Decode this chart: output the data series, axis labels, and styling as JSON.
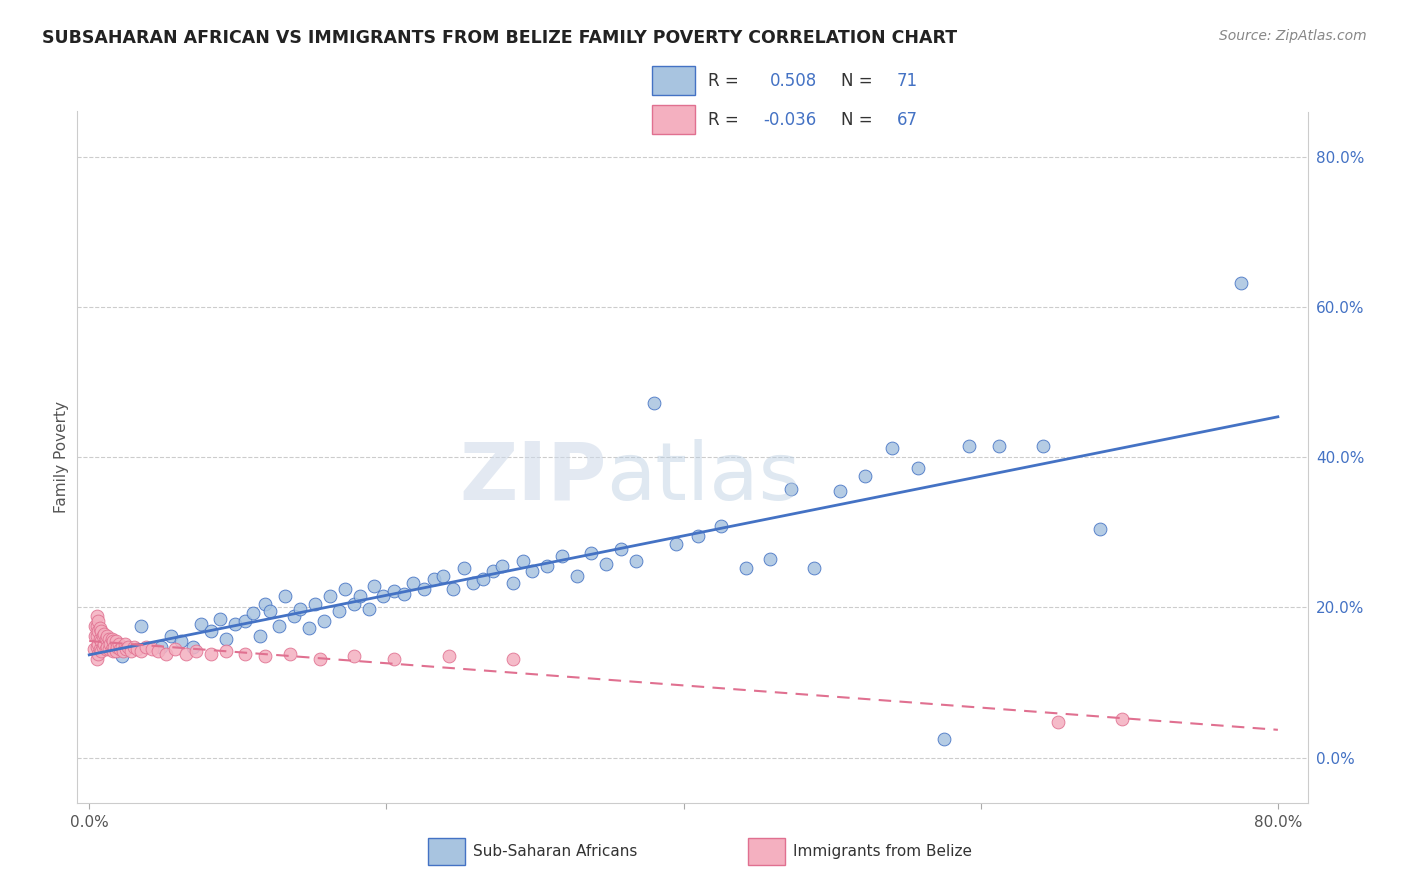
{
  "title": "SUBSAHARAN AFRICAN VS IMMIGRANTS FROM BELIZE FAMILY POVERTY CORRELATION CHART",
  "source": "Source: ZipAtlas.com",
  "ylabel": "Family Poverty",
  "color_blue": "#a8c4e0",
  "line_blue": "#4472c4",
  "color_pink": "#f4b0c0",
  "line_pink": "#e07090",
  "r_blue": 0.508,
  "n_blue": 71,
  "r_pink": -0.036,
  "n_pink": 67,
  "blue_x": [
    0.022,
    0.035,
    0.048,
    0.055,
    0.062,
    0.07,
    0.075,
    0.082,
    0.088,
    0.092,
    0.098,
    0.105,
    0.11,
    0.115,
    0.118,
    0.122,
    0.128,
    0.132,
    0.138,
    0.142,
    0.148,
    0.152,
    0.158,
    0.162,
    0.168,
    0.172,
    0.178,
    0.182,
    0.188,
    0.192,
    0.198,
    0.205,
    0.212,
    0.218,
    0.225,
    0.232,
    0.238,
    0.245,
    0.252,
    0.258,
    0.265,
    0.272,
    0.278,
    0.285,
    0.292,
    0.298,
    0.308,
    0.318,
    0.328,
    0.338,
    0.348,
    0.358,
    0.368,
    0.38,
    0.395,
    0.41,
    0.425,
    0.442,
    0.458,
    0.472,
    0.488,
    0.505,
    0.522,
    0.54,
    0.558,
    0.575,
    0.592,
    0.612,
    0.642,
    0.68,
    0.775
  ],
  "blue_y": [
    0.135,
    0.175,
    0.148,
    0.162,
    0.155,
    0.148,
    0.178,
    0.168,
    0.185,
    0.158,
    0.178,
    0.182,
    0.192,
    0.162,
    0.205,
    0.195,
    0.175,
    0.215,
    0.188,
    0.198,
    0.172,
    0.205,
    0.182,
    0.215,
    0.195,
    0.225,
    0.205,
    0.215,
    0.198,
    0.228,
    0.215,
    0.222,
    0.218,
    0.232,
    0.225,
    0.238,
    0.242,
    0.225,
    0.252,
    0.232,
    0.238,
    0.248,
    0.255,
    0.232,
    0.262,
    0.248,
    0.255,
    0.268,
    0.242,
    0.272,
    0.258,
    0.278,
    0.262,
    0.472,
    0.285,
    0.295,
    0.308,
    0.252,
    0.265,
    0.358,
    0.252,
    0.355,
    0.375,
    0.412,
    0.385,
    0.025,
    0.415,
    0.415,
    0.415,
    0.305,
    0.632
  ],
  "pink_x": [
    0.003,
    0.004,
    0.004,
    0.005,
    0.005,
    0.005,
    0.005,
    0.005,
    0.006,
    0.006,
    0.006,
    0.006,
    0.007,
    0.007,
    0.007,
    0.008,
    0.008,
    0.008,
    0.009,
    0.009,
    0.01,
    0.01,
    0.011,
    0.011,
    0.012,
    0.012,
    0.013,
    0.013,
    0.014,
    0.015,
    0.015,
    0.016,
    0.016,
    0.017,
    0.018,
    0.018,
    0.019,
    0.02,
    0.021,
    0.022,
    0.023,
    0.024,
    0.025,
    0.026,
    0.028,
    0.03,
    0.032,
    0.035,
    0.038,
    0.042,
    0.046,
    0.052,
    0.058,
    0.065,
    0.072,
    0.082,
    0.092,
    0.105,
    0.118,
    0.135,
    0.155,
    0.178,
    0.205,
    0.242,
    0.285,
    0.652,
    0.695
  ],
  "pink_y": [
    0.145,
    0.162,
    0.175,
    0.132,
    0.148,
    0.162,
    0.175,
    0.188,
    0.138,
    0.152,
    0.168,
    0.182,
    0.145,
    0.158,
    0.172,
    0.142,
    0.155,
    0.168,
    0.148,
    0.162,
    0.152,
    0.165,
    0.145,
    0.158,
    0.148,
    0.162,
    0.145,
    0.158,
    0.152,
    0.145,
    0.158,
    0.142,
    0.155,
    0.148,
    0.142,
    0.155,
    0.148,
    0.152,
    0.145,
    0.148,
    0.142,
    0.152,
    0.145,
    0.148,
    0.142,
    0.148,
    0.145,
    0.142,
    0.148,
    0.145,
    0.142,
    0.138,
    0.145,
    0.138,
    0.142,
    0.138,
    0.142,
    0.138,
    0.135,
    0.138,
    0.132,
    0.135,
    0.132,
    0.135,
    0.132,
    0.048,
    0.052
  ]
}
